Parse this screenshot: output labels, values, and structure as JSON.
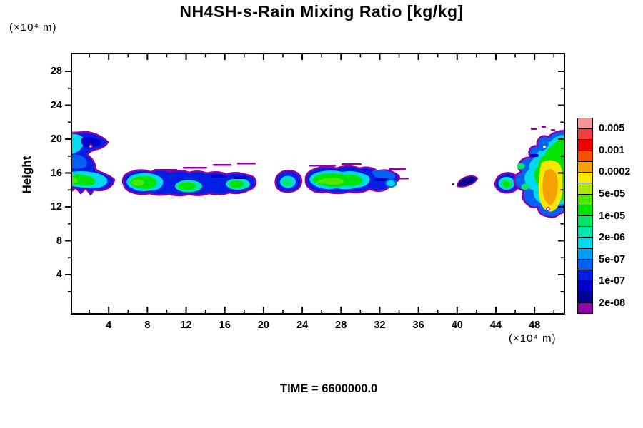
{
  "palette": {
    "pink": "#F59596",
    "salmon": "#F3403F",
    "red": "#F10000",
    "orangered": "#F55200",
    "orange": "#F7A100",
    "yellow": "#F8E700",
    "ygreen": "#A8E800",
    "lime": "#4FE700",
    "green": "#00E400",
    "spring": "#00E766",
    "aqua": "#00E7AE",
    "cyan": "#00D9EE",
    "sky": "#009FF5",
    "dodger": "#0061F3",
    "blue": "#001EE4",
    "mblue": "#0000C8",
    "navy": "#000091",
    "purple": "#8F00A8"
  },
  "chart_data": {
    "type": "heatmap",
    "title": "NH4SH-s-Rain Mixing Ratio [kg/kg]",
    "time_label": "TIME = 6600000.0",
    "grid": false,
    "x_axis": {
      "units": "(×10⁴  m)",
      "major_ticks": [
        4,
        8,
        12,
        16,
        20,
        24,
        28,
        32,
        36,
        40,
        44,
        48
      ],
      "minor_tick_step": 2,
      "range": [
        0,
        51
      ]
    },
    "y_axis": {
      "label": "Height",
      "units": "(×10⁴  m)",
      "major_ticks": [
        4,
        8,
        12,
        16,
        20,
        24,
        28
      ],
      "minor_tick_step": 2,
      "range": [
        0,
        30.7
      ]
    },
    "colorbar": {
      "position": "right",
      "labels": [
        "0.005",
        "0.001",
        "0.0002",
        "5e-05",
        "1e-05",
        "2e-06",
        "5e-07",
        "1e-07",
        "2e-08"
      ],
      "colors_top_to_bottom": [
        "#F59596",
        "#F3403F",
        "#F10000",
        "#F55200",
        "#F7A100",
        "#F8E700",
        "#A8E800",
        "#4FE700",
        "#00E400",
        "#00E766",
        "#00E7AE",
        "#00D9EE",
        "#009FF5",
        "#0061F3",
        "#001EE4",
        "#0000C8",
        "#000091",
        "#8F00A8"
      ],
      "level_boundaries_top_to_bottom": [
        "0.01",
        "0.005",
        "0.002",
        "0.001",
        "0.0005",
        "0.0002",
        "0.0001",
        "5e-05",
        "2e-05",
        "1e-05",
        "5e-06",
        "2e-06",
        "1e-06",
        "5e-07",
        "2e-07",
        "1e-07",
        "5e-08",
        "2e-08",
        "1e-08"
      ]
    },
    "regions": [
      {
        "x_range": [
          0,
          4.9
        ],
        "height_range": [
          13.4,
          20.8
        ],
        "peak_level": "1e-04",
        "attached": "left-edge"
      },
      {
        "x_range": [
          5.5,
          19.5
        ],
        "height_range": [
          13.1,
          16.5
        ],
        "peak_level": "1e-04"
      },
      {
        "x_range": [
          21.2,
          23.9
        ],
        "height_range": [
          13.5,
          16.2
        ],
        "peak_level": "1e-05"
      },
      {
        "x_range": [
          24.1,
          34.3
        ],
        "height_range": [
          13.5,
          17.2
        ],
        "peak_level": "1e-04"
      },
      {
        "x_range": [
          39.8,
          42.2
        ],
        "height_range": [
          14.2,
          15.7
        ],
        "peak_level": "5e-08"
      },
      {
        "x_range": [
          43.9,
          46.4
        ],
        "height_range": [
          13.4,
          16.0
        ],
        "peak_level": "2e-05"
      },
      {
        "x_range": [
          45.8,
          51.0
        ],
        "height_range": [
          11.3,
          21.4
        ],
        "peak_level": "5e-04",
        "attached": "right-edge"
      }
    ]
  }
}
